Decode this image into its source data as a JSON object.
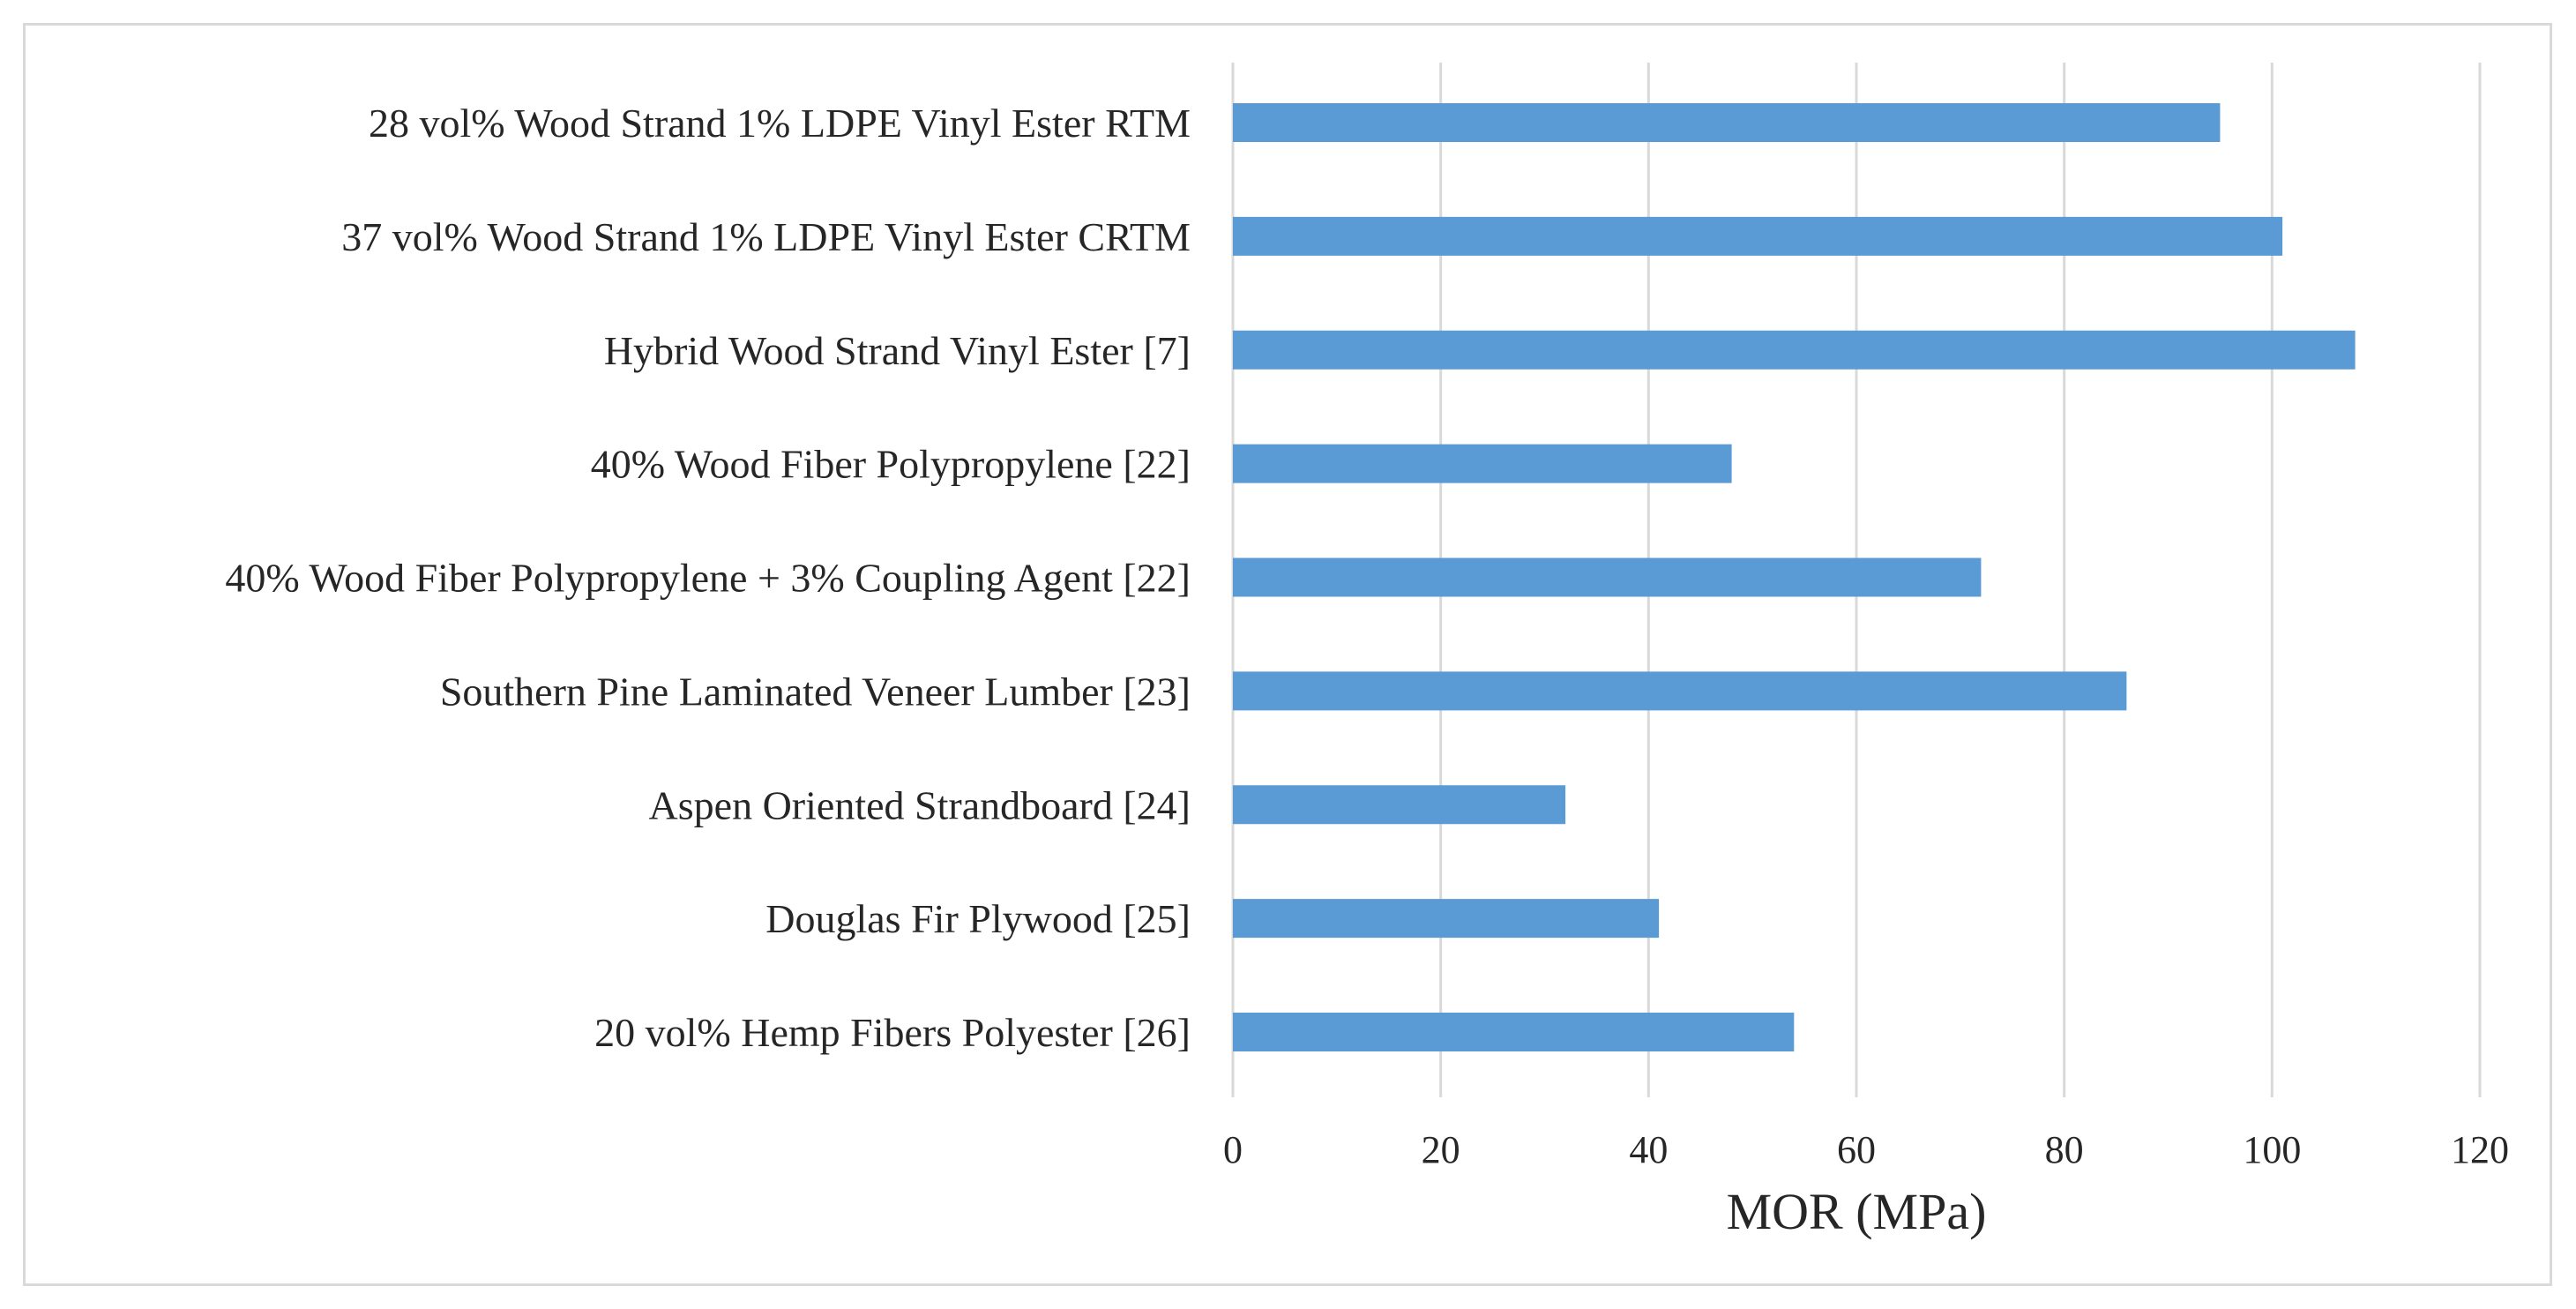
{
  "chart_data": {
    "type": "bar",
    "orientation": "horizontal",
    "title": "",
    "xlabel": "MOR (MPa)",
    "ylabel": "",
    "xlim": [
      0,
      120
    ],
    "xticks": [
      0,
      20,
      40,
      60,
      80,
      100,
      120
    ],
    "grid": true,
    "legend": "none",
    "bar_color": "#5b9bd5",
    "categories": [
      "28 vol% Wood Strand 1% LDPE Vinyl Ester RTM",
      "37 vol% Wood Strand 1% LDPE Vinyl Ester CRTM",
      "Hybrid Wood Strand Vinyl Ester [7]",
      "40% Wood Fiber Polypropylene [22]",
      "40% Wood Fiber Polypropylene + 3% Coupling Agent [22]",
      "Southern Pine Laminated Veneer Lumber [23]",
      "Aspen Oriented Strandboard [24]",
      "Douglas Fir Plywood [25]",
      "20 vol% Hemp Fibers Polyester [26]"
    ],
    "values": [
      95,
      101,
      108,
      48,
      72,
      86,
      32,
      41,
      54
    ]
  }
}
